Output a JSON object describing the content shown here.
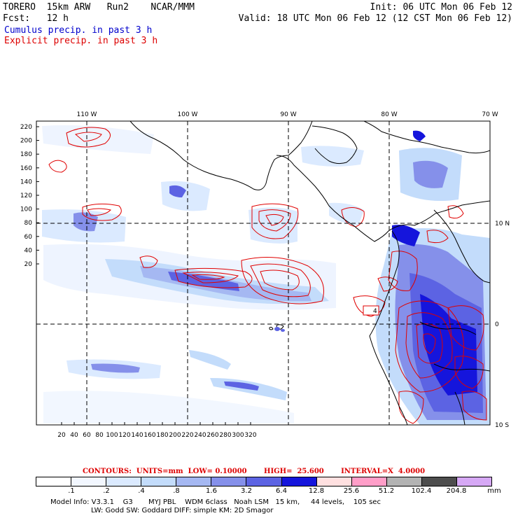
{
  "header": {
    "line1_left": "TORERO  15km ARW   Run2    NCAR/MMM",
    "line1_right": "Init: 06 UTC Mon 06 Feb 12",
    "line2_left": "Fcst:   12 h",
    "line2_right": "Valid: 18 UTC Mon 06 Feb 12 (12 CST Mon 06 Feb 12)",
    "cumulus": "Cumulus precip. in past 3 h",
    "explicit": "Explicit precip. in past 3 h"
  },
  "colors": {
    "cumulus_text": "#0000cc",
    "explicit_text": "#dd0000",
    "explicit_contour": "#e00000",
    "coast": "#000000"
  },
  "axes": {
    "top_lon": [
      "110 W",
      "100 W",
      "90 W",
      "80 W",
      "70 W"
    ],
    "right_lat": [
      "10 N",
      "0",
      "10 S"
    ],
    "left_ticks": [
      "220",
      "200",
      "180",
      "160",
      "140",
      "120",
      "100",
      "80",
      "60",
      "40",
      "20"
    ],
    "bottom_ticks": [
      "20",
      "40",
      "60",
      "80",
      "100",
      "120",
      "140",
      "160",
      "180",
      "200",
      "220",
      "240",
      "260",
      "280",
      "300",
      "320"
    ],
    "highlight_label": "4"
  },
  "contours": {
    "label": "CONTOURS:  UNITS=mm  LOW= 0.10000       HIGH=  25.600       INTERVAL=X  4.0000"
  },
  "legend": {
    "colors": [
      "#ffffff",
      "#f2f7ff",
      "#dbeaff",
      "#c3dcfb",
      "#a5b8f2",
      "#8590ea",
      "#5c63e3",
      "#1515dc",
      "#ffe0e0",
      "#ff9ec8",
      "#b3b3b3",
      "#4d4d4d",
      "#d6a8f5"
    ],
    "labels": [
      ".1",
      ".2",
      ".4",
      ".8",
      "1.6",
      "3.2",
      "6.4",
      "12.8",
      "25.6",
      "51.2",
      "102.4",
      "204.8"
    ],
    "unit": "mm"
  },
  "footer": {
    "line1": "Model Info: V3.3.1    G3       MYJ PBL    WDM 6class   Noah LSM   15 km,     44 levels,    105 sec",
    "line2": "LW: Godd SW: Goddard DIFF: simple KM: 2D Smagor"
  }
}
